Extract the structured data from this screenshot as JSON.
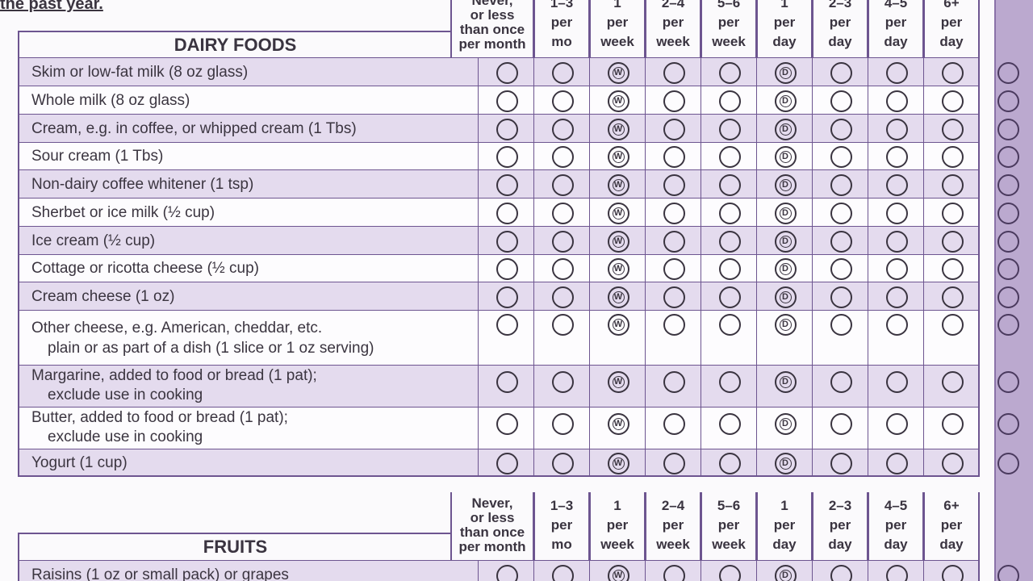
{
  "heading": "the past year.",
  "sections": [
    {
      "title": "DAIRY FOODS",
      "columns": [
        {
          "lines": [
            "Never,",
            "or less",
            "than once",
            "per month"
          ]
        },
        {
          "lines": [
            "1–3",
            "per",
            "mo"
          ]
        },
        {
          "lines": [
            "1",
            "per",
            "week"
          ],
          "marker": "W"
        },
        {
          "lines": [
            "2–4",
            "per",
            "week"
          ]
        },
        {
          "lines": [
            "5–6",
            "per",
            "week"
          ]
        },
        {
          "lines": [
            "1",
            "per",
            "day"
          ],
          "marker": "D"
        },
        {
          "lines": [
            "2–3",
            "per",
            "day"
          ]
        },
        {
          "lines": [
            "4–5",
            "per",
            "day"
          ]
        },
        {
          "lines": [
            "6+",
            "per",
            "day"
          ]
        }
      ],
      "rows": [
        {
          "label": [
            "Skim or low-fat milk (8 oz glass)"
          ]
        },
        {
          "label": [
            "Whole milk (8 oz glass)"
          ]
        },
        {
          "label": [
            "Cream, e.g. in coffee, or whipped cream (1 Tbs)"
          ]
        },
        {
          "label": [
            "Sour cream (1 Tbs)"
          ]
        },
        {
          "label": [
            "Non-dairy coffee whitener (1 tsp)"
          ]
        },
        {
          "label": [
            "Sherbet or ice milk (½ cup)"
          ]
        },
        {
          "label": [
            "Ice cream (½ cup)"
          ]
        },
        {
          "label": [
            "Cottage or ricotta cheese (½ cup)"
          ]
        },
        {
          "label": [
            "Cream cheese (1 oz)"
          ]
        },
        {
          "label": [
            "Other cheese, e.g. American, cheddar, etc.",
            "plain or as part of a dish (1 slice or 1 oz serving)"
          ]
        },
        {
          "label": [
            "Margarine, added to food or bread (1 pat);",
            "exclude use in cooking"
          ]
        },
        {
          "label": [
            "Butter, added to food or bread (1 pat);",
            "exclude use in cooking"
          ]
        },
        {
          "label": [
            "Yogurt (1 cup)"
          ]
        }
      ]
    },
    {
      "title": "FRUITS",
      "columns": [
        {
          "lines": [
            "Never,",
            "or less",
            "than once",
            "per month"
          ]
        },
        {
          "lines": [
            "1–3",
            "per",
            "mo"
          ]
        },
        {
          "lines": [
            "1",
            "per",
            "week"
          ],
          "marker": "W"
        },
        {
          "lines": [
            "2–4",
            "per",
            "week"
          ]
        },
        {
          "lines": [
            "5–6",
            "per",
            "week"
          ]
        },
        {
          "lines": [
            "1",
            "per",
            "day"
          ],
          "marker": "D"
        },
        {
          "lines": [
            "2–3",
            "per",
            "day"
          ]
        },
        {
          "lines": [
            "4–5",
            "per",
            "day"
          ]
        },
        {
          "lines": [
            "6+",
            "per",
            "day"
          ]
        }
      ],
      "rows": [
        {
          "label": [
            "Raisins (1 oz or small pack) or grapes"
          ]
        }
      ]
    }
  ]
}
